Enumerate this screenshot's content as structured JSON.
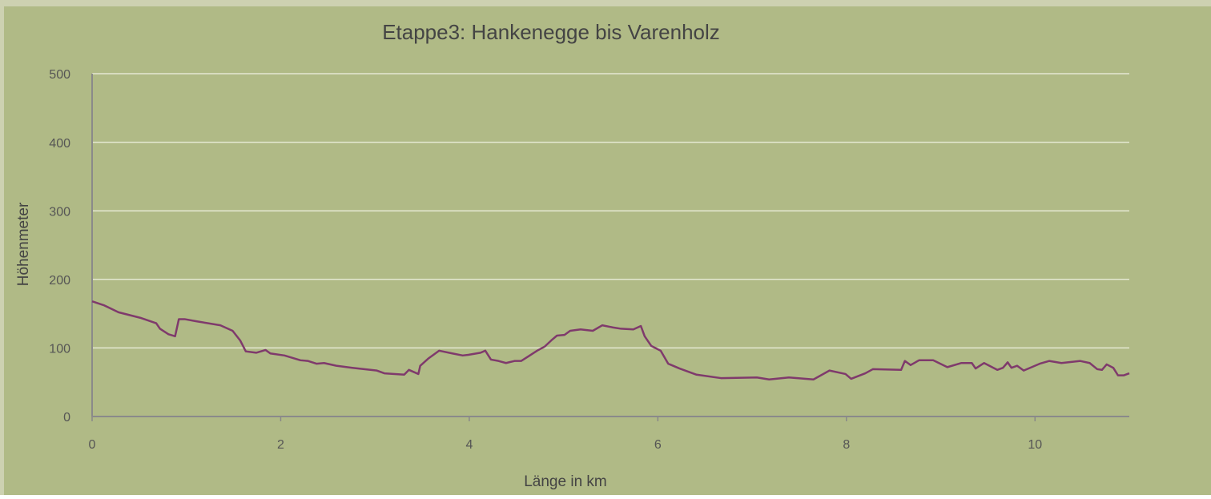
{
  "chart_data": {
    "type": "line",
    "title": "Etappe3: Hankenegge bis Varenholz",
    "xlabel": "Länge in km",
    "ylabel": "Höhenmeter",
    "xlim": [
      0,
      11
    ],
    "ylim": [
      0,
      500
    ],
    "xticks": [
      0,
      2,
      4,
      6,
      8,
      10
    ],
    "yticks": [
      0,
      100,
      200,
      300,
      400,
      500
    ],
    "grid": true,
    "series": [
      {
        "color": "#7f3a6c",
        "x": [
          0,
          0.13,
          0.28,
          0.51,
          0.68,
          0.72,
          0.81,
          0.88,
          0.92,
          0.98,
          1.1,
          1.36,
          1.49,
          1.57,
          1.63,
          1.74,
          1.84,
          1.89,
          2.04,
          2.21,
          2.29,
          2.38,
          2.46,
          2.59,
          2.76,
          3.02,
          3.1,
          3.31,
          3.36,
          3.46,
          3.48,
          3.57,
          3.68,
          3.82,
          3.93,
          3.99,
          4.12,
          4.17,
          4.23,
          4.31,
          4.39,
          4.48,
          4.55,
          4.63,
          4.72,
          4.8,
          4.87,
          4.93,
          5.01,
          5.07,
          5.18,
          5.31,
          5.41,
          5.52,
          5.61,
          5.74,
          5.82,
          5.86,
          5.93,
          6.03,
          6.11,
          6.23,
          6.41,
          6.67,
          7.05,
          7.18,
          7.39,
          7.65,
          7.82,
          7.99,
          8.05,
          8.2,
          8.28,
          8.58,
          8.62,
          8.68,
          8.77,
          8.92,
          9.07,
          9.22,
          9.33,
          9.37,
          9.46,
          9.6,
          9.66,
          9.71,
          9.75,
          9.81,
          9.88,
          10.05,
          10.15,
          10.28,
          10.48,
          10.58,
          10.66,
          10.71,
          10.76,
          10.83,
          10.88,
          10.94,
          11.0
        ],
        "values": [
          168,
          162,
          152,
          144,
          136,
          128,
          120,
          117,
          142,
          142,
          139,
          133,
          125,
          111,
          95,
          93,
          97,
          92,
          89,
          82,
          81,
          77,
          78,
          74,
          71,
          67,
          63,
          61,
          68,
          62,
          74,
          85,
          96,
          92,
          89,
          90,
          93,
          96,
          83,
          81,
          78,
          81,
          81,
          88,
          96,
          102,
          111,
          118,
          119,
          125,
          127,
          125,
          133,
          130,
          128,
          127,
          132,
          117,
          103,
          96,
          77,
          70,
          61,
          56,
          57,
          54,
          57,
          54,
          67,
          62,
          55,
          63,
          69,
          68,
          81,
          75,
          82,
          82,
          72,
          78,
          78,
          70,
          78,
          68,
          71,
          79,
          71,
          74,
          67,
          77,
          81,
          78,
          81,
          78,
          69,
          68,
          76,
          71,
          60,
          60,
          63
        ]
      }
    ]
  }
}
